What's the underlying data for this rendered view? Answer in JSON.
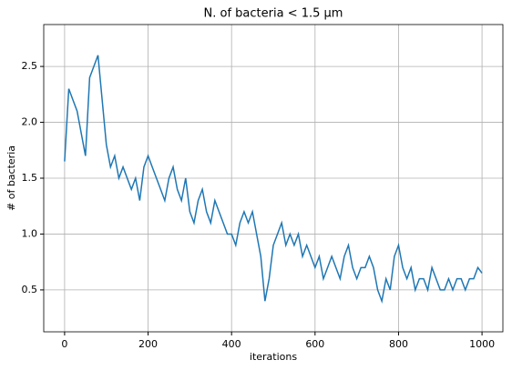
{
  "chart_data": {
    "type": "line",
    "title": "N. of bacteria < 1.5 μm",
    "xlabel": "iterations",
    "ylabel": "# of bacteria",
    "x": [
      0,
      10,
      20,
      30,
      40,
      50,
      60,
      70,
      80,
      90,
      100,
      110,
      120,
      130,
      140,
      150,
      160,
      170,
      180,
      190,
      200,
      210,
      220,
      230,
      240,
      250,
      260,
      270,
      280,
      290,
      300,
      310,
      320,
      330,
      340,
      350,
      360,
      370,
      380,
      390,
      400,
      410,
      420,
      430,
      440,
      450,
      460,
      470,
      480,
      490,
      500,
      510,
      520,
      530,
      540,
      550,
      560,
      570,
      580,
      590,
      600,
      610,
      620,
      630,
      640,
      650,
      660,
      670,
      680,
      690,
      700,
      710,
      720,
      730,
      740,
      750,
      760,
      770,
      780,
      790,
      800,
      810,
      820,
      830,
      840,
      850,
      860,
      870,
      880,
      890,
      900,
      910,
      920,
      930,
      940,
      950,
      960,
      970,
      980,
      990,
      1000
    ],
    "series": [
      {
        "name": "bacteria",
        "color": "#1f77b4",
        "values": [
          1.65,
          2.3,
          2.2,
          2.1,
          1.9,
          1.7,
          2.4,
          2.5,
          2.6,
          2.2,
          1.8,
          1.6,
          1.7,
          1.5,
          1.6,
          1.5,
          1.4,
          1.5,
          1.3,
          1.6,
          1.7,
          1.6,
          1.5,
          1.4,
          1.3,
          1.5,
          1.6,
          1.4,
          1.3,
          1.5,
          1.2,
          1.1,
          1.3,
          1.4,
          1.2,
          1.1,
          1.3,
          1.2,
          1.1,
          1.0,
          1.0,
          0.9,
          1.1,
          1.2,
          1.1,
          1.2,
          1.0,
          0.8,
          0.4,
          0.6,
          0.9,
          1.0,
          1.1,
          0.9,
          1.0,
          0.9,
          1.0,
          0.8,
          0.9,
          0.8,
          0.7,
          0.8,
          0.6,
          0.7,
          0.8,
          0.7,
          0.6,
          0.8,
          0.9,
          0.7,
          0.6,
          0.7,
          0.7,
          0.8,
          0.7,
          0.5,
          0.4,
          0.6,
          0.5,
          0.8,
          0.9,
          0.7,
          0.6,
          0.7,
          0.5,
          0.6,
          0.6,
          0.5,
          0.7,
          0.6,
          0.5,
          0.5,
          0.6,
          0.5,
          0.6,
          0.6,
          0.5,
          0.6,
          0.6,
          0.7,
          0.65
        ]
      }
    ],
    "xlim": [
      -50,
      1050
    ],
    "ylim": [
      0.125,
      2.875
    ],
    "xticks": [
      0,
      200,
      400,
      600,
      800,
      1000
    ],
    "yticks": [
      0.5,
      {
        "value": 1,
        "label": "1.0"
      },
      1.5,
      {
        "value": 2,
        "label": "2.0"
      },
      2.5
    ],
    "grid": true
  }
}
